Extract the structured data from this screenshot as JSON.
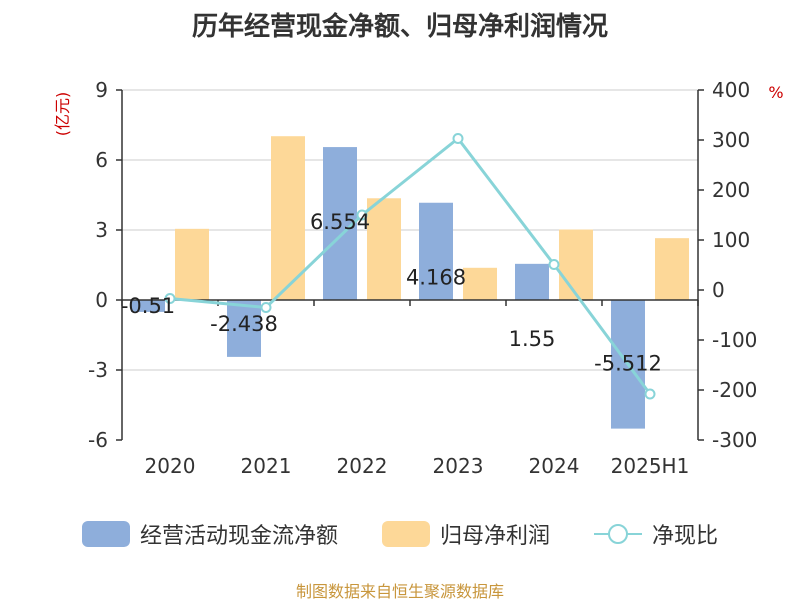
{
  "chart_data": {
    "type": "bar",
    "title": "历年经营现金净额、归母净利润情况",
    "categories": [
      "2020",
      "2021",
      "2022",
      "2023",
      "2024",
      "2025H1"
    ],
    "left_axis": {
      "unit": "(亿元)",
      "range": [
        -6,
        9
      ],
      "ticks": [
        "9",
        "6",
        "3",
        "0",
        "-3",
        "-6"
      ]
    },
    "right_axis": {
      "unit": "%",
      "range": [
        -300,
        400
      ],
      "ticks": [
        "400",
        "300",
        "200",
        "100",
        "0",
        "-100",
        "-200",
        "-300"
      ]
    },
    "series": [
      {
        "name": "经营活动现金流净额",
        "type": "bar",
        "axis": "left",
        "color": "#8eaedb",
        "values": [
          -0.51,
          -2.438,
          6.554,
          4.168,
          1.55,
          -5.512
        ],
        "labels": [
          "-0.51",
          "-2.438",
          "6.554",
          "4.168",
          "1.55",
          "-5.512"
        ]
      },
      {
        "name": "归母净利润",
        "type": "bar",
        "axis": "left",
        "color": "#fdd898",
        "values": [
          3.05,
          7.02,
          4.36,
          1.38,
          3.02,
          2.65
        ]
      },
      {
        "name": "净现比",
        "type": "line",
        "axis": "right",
        "color": "#88d4d8",
        "values": [
          -17,
          -35,
          150,
          303,
          51,
          -208
        ]
      }
    ],
    "grid": true,
    "legend": "bottom"
  },
  "source": "制图数据来自恒生聚源数据库"
}
